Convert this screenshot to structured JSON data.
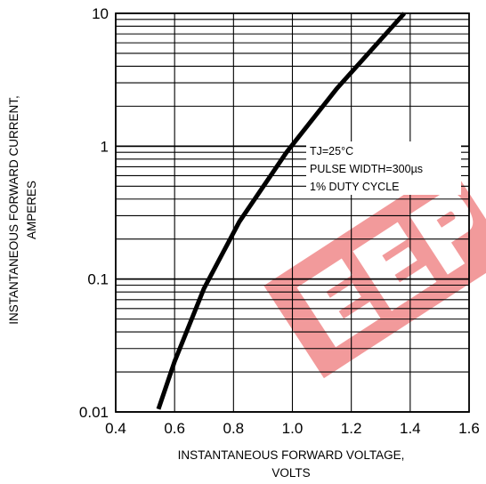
{
  "chart_data": {
    "type": "line",
    "xlabel_lines": [
      "INSTANTANEOUS FORWARD VOLTAGE,",
      "VOLTS"
    ],
    "ylabel_lines": [
      "INSTANTANEOUS FORWARD CURRENT,",
      "AMPERES"
    ],
    "xlim": [
      0.4,
      1.6
    ],
    "ylim": [
      0.01,
      10
    ],
    "yscale": "log",
    "grid": true,
    "x_ticks": [
      "0.4",
      "0.6",
      "0.8",
      "1.0",
      "1.2",
      "1.4",
      "1.6"
    ],
    "y_ticks": [
      "0.01",
      "0.1",
      "1",
      "10"
    ],
    "series": [
      {
        "x": [
          0.545,
          0.6,
          0.7,
          0.82,
          0.98,
          1.15,
          1.38
        ],
        "y": [
          0.0105,
          0.024,
          0.085,
          0.27,
          0.9,
          2.7,
          10
        ]
      }
    ],
    "annotations": [
      "TJ=25°C",
      "PULSE WIDTH=300µs",
      "1% DUTY CYCLE"
    ],
    "colors": {
      "curve": "#000000",
      "grid": "#000000",
      "watermark": "#e8484a"
    }
  }
}
